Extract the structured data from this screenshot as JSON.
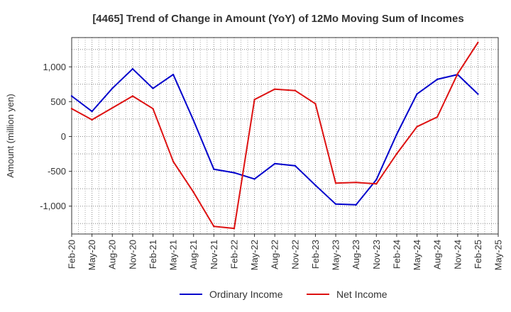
{
  "chart_data": {
    "type": "line",
    "title": "[4465]  Trend of Change in Amount (YoY) of 12Mo Moving Sum of Incomes",
    "ylabel": "Amount (million yen)",
    "xlabel": "",
    "x_ticks": [
      "Feb-20",
      "May-20",
      "Aug-20",
      "Nov-20",
      "Feb-21",
      "May-21",
      "Aug-21",
      "Nov-21",
      "Feb-22",
      "May-22",
      "Aug-22",
      "Nov-22",
      "Feb-23",
      "May-23",
      "Aug-23",
      "Nov-23",
      "Feb-24",
      "May-24",
      "Aug-24",
      "Nov-24",
      "Feb-25",
      "May-25"
    ],
    "x": [
      "Feb-20",
      "May-20",
      "Aug-20",
      "Nov-20",
      "Feb-21",
      "May-21",
      "Aug-21",
      "Nov-21",
      "Feb-22",
      "May-22",
      "Aug-22",
      "Nov-22",
      "Feb-23",
      "May-23",
      "Aug-23",
      "Nov-23",
      "Feb-24",
      "May-24",
      "Aug-24",
      "Nov-24",
      "Feb-25"
    ],
    "y_ticks": [
      -1000,
      -500,
      0,
      500,
      1000
    ],
    "y_tick_labels": [
      "-1,000",
      "-500",
      "0",
      "500",
      "1,000"
    ],
    "ylim": [
      -1400,
      1420
    ],
    "grid": true,
    "legend_position": "bottom",
    "series": [
      {
        "name": "Ordinary Income",
        "color": "#0000cc",
        "values": [
          580,
          360,
          690,
          970,
          690,
          890,
          230,
          -470,
          -520,
          -610,
          -390,
          -420,
          -700,
          -970,
          -980,
          -620,
          30,
          610,
          820,
          890,
          610
        ]
      },
      {
        "name": "Net Income",
        "color": "#dd1111",
        "values": [
          400,
          240,
          410,
          580,
          400,
          -360,
          -800,
          -1290,
          -1320,
          530,
          680,
          660,
          470,
          -670,
          -660,
          -680,
          -250,
          140,
          280,
          900,
          1350
        ]
      }
    ]
  }
}
